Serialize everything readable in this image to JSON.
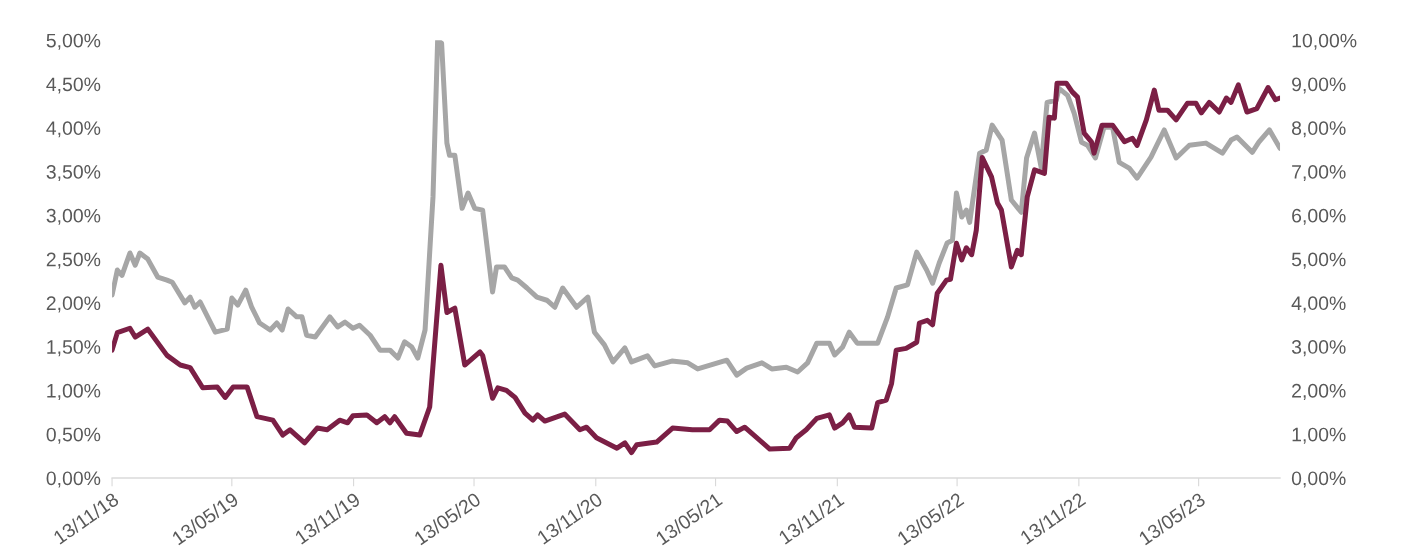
{
  "chart_data": {
    "type": "line",
    "xlim": [
      "2018-11-13",
      "2023-09-13"
    ],
    "xticks": [
      {
        "value": "2018-11-13",
        "label": "13/11/18"
      },
      {
        "value": "2019-05-13",
        "label": "13/05/19"
      },
      {
        "value": "2019-11-13",
        "label": "13/11/19"
      },
      {
        "value": "2020-05-13",
        "label": "13/05/20"
      },
      {
        "value": "2020-11-13",
        "label": "13/11/20"
      },
      {
        "value": "2021-05-13",
        "label": "13/05/21"
      },
      {
        "value": "2021-11-13",
        "label": "13/11/21"
      },
      {
        "value": "2022-05-13",
        "label": "13/05/22"
      },
      {
        "value": "2022-11-13",
        "label": "13/11/22"
      },
      {
        "value": "2023-05-13",
        "label": "13/05/23"
      }
    ],
    "ylim": [
      0,
      5
    ],
    "yticks": [
      {
        "value": 0,
        "label": "0,00%"
      },
      {
        "value": 0.5,
        "label": "0,50%"
      },
      {
        "value": 1,
        "label": "1,00%"
      },
      {
        "value": 1.5,
        "label": "1,50%"
      },
      {
        "value": 2,
        "label": "2,00%"
      },
      {
        "value": 2.5,
        "label": "2,50%"
      },
      {
        "value": 3,
        "label": "3,00%"
      },
      {
        "value": 3.5,
        "label": "3,50%"
      },
      {
        "value": 4,
        "label": "4,00%"
      },
      {
        "value": 4.5,
        "label": "4,50%"
      },
      {
        "value": 5,
        "label": "5,00%"
      }
    ],
    "y2lim": [
      0,
      10
    ],
    "y2ticks": [
      {
        "value": 0,
        "label": "0,00%"
      },
      {
        "value": 1,
        "label": "1,00%"
      },
      {
        "value": 2,
        "label": "2,00%"
      },
      {
        "value": 3,
        "label": "3,00%"
      },
      {
        "value": 4,
        "label": "4,00%"
      },
      {
        "value": 5,
        "label": "5,00%"
      },
      {
        "value": 6,
        "label": "6,00%"
      },
      {
        "value": 7,
        "label": "7,00%"
      },
      {
        "value": 8,
        "label": "8,00%"
      },
      {
        "value": 9,
        "label": "9,00%"
      },
      {
        "value": 10,
        "label": "10,00%"
      }
    ],
    "grid": false,
    "marker": "none",
    "line_style": "solid",
    "series": [
      {
        "color": "#a6a6a6",
        "axis": "y2",
        "x": [
          "2018-11-13",
          "2018-11-21",
          "2018-11-28",
          "2018-12-10",
          "2018-12-18",
          "2018-12-25",
          "2019-01-06",
          "2019-01-21",
          "2019-02-04",
          "2019-02-12",
          "2019-03-03",
          "2019-03-11",
          "2019-03-18",
          "2019-03-26",
          "2019-04-18",
          "2019-05-06",
          "2019-05-13",
          "2019-05-22",
          "2019-06-03",
          "2019-06-12",
          "2019-06-24",
          "2019-07-10",
          "2019-07-20",
          "2019-07-28",
          "2019-08-06",
          "2019-08-19",
          "2019-08-27",
          "2019-09-03",
          "2019-09-16",
          "2019-10-08",
          "2019-10-20",
          "2019-10-31",
          "2019-11-12",
          "2019-11-22",
          "2019-12-08",
          "2019-12-23",
          "2020-01-07",
          "2020-01-19",
          "2020-01-29",
          "2020-02-09",
          "2020-02-18",
          "2020-02-29",
          "2020-03-12",
          "2020-03-19",
          "2020-03-25",
          "2020-04-02",
          "2020-04-06",
          "2020-04-14",
          "2020-04-25",
          "2020-05-04",
          "2020-05-14",
          "2020-05-26",
          "2020-06-10",
          "2020-06-16",
          "2020-06-28",
          "2020-07-09",
          "2020-07-18",
          "2020-08-01",
          "2020-08-16",
          "2020-08-31",
          "2020-09-12",
          "2020-09-24",
          "2020-10-15",
          "2020-11-01",
          "2020-11-11",
          "2020-11-26",
          "2020-12-09",
          "2020-12-27",
          "2021-01-06",
          "2021-01-30",
          "2021-02-10",
          "2021-03-08",
          "2021-04-01",
          "2021-04-16",
          "2021-05-30",
          "2021-06-14",
          "2021-06-29",
          "2021-07-22",
          "2021-08-06",
          "2021-08-28",
          "2021-09-14",
          "2021-09-29",
          "2021-10-13",
          "2021-11-01",
          "2021-11-09",
          "2021-11-21",
          "2021-12-01",
          "2021-12-13",
          "2022-01-13",
          "2022-01-28",
          "2022-02-10",
          "2022-02-27",
          "2022-03-13",
          "2022-03-28",
          "2022-04-06",
          "2022-04-16",
          "2022-04-28",
          "2022-05-06",
          "2022-05-12",
          "2022-05-20",
          "2022-05-27",
          "2022-06-01",
          "2022-06-16",
          "2022-06-26",
          "2022-07-05",
          "2022-07-20",
          "2022-08-03",
          "2022-08-18",
          "2022-08-26",
          "2022-09-07",
          "2022-09-17",
          "2022-09-26",
          "2022-10-10",
          "2022-10-14",
          "2022-10-27",
          "2022-11-06",
          "2022-11-17",
          "2022-11-26",
          "2022-12-08",
          "2022-12-21",
          "2023-01-03",
          "2023-01-13",
          "2023-01-28",
          "2023-02-09",
          "2023-03-02",
          "2023-03-22",
          "2023-04-09",
          "2023-04-29",
          "2023-05-24",
          "2023-06-18",
          "2023-07-01",
          "2023-07-10",
          "2023-08-02",
          "2023-08-12",
          "2023-08-28",
          "2023-09-13"
        ],
        "values": [
          4.18,
          4.75,
          4.63,
          5.14,
          4.86,
          5.14,
          5.0,
          4.59,
          4.52,
          4.47,
          4.0,
          4.13,
          3.9,
          4.02,
          3.33,
          3.4,
          4.11,
          3.95,
          4.29,
          3.9,
          3.54,
          3.38,
          3.54,
          3.38,
          3.86,
          3.68,
          3.68,
          3.26,
          3.22,
          3.68,
          3.45,
          3.56,
          3.42,
          3.49,
          3.26,
          2.92,
          2.92,
          2.74,
          3.11,
          2.99,
          2.74,
          3.38,
          6.42,
          10.0,
          9.93,
          7.65,
          7.37,
          7.37,
          6.16,
          6.51,
          6.16,
          6.12,
          4.25,
          4.82,
          4.82,
          4.57,
          4.52,
          4.34,
          4.13,
          4.06,
          3.9,
          4.34,
          3.9,
          4.13,
          3.33,
          3.04,
          2.65,
          2.97,
          2.65,
          2.79,
          2.56,
          2.67,
          2.63,
          2.49,
          2.69,
          2.35,
          2.51,
          2.63,
          2.49,
          2.53,
          2.42,
          2.63,
          3.08,
          3.08,
          2.81,
          2.99,
          3.33,
          3.08,
          3.08,
          3.68,
          4.34,
          4.41,
          5.16,
          4.75,
          4.45,
          4.91,
          5.37,
          5.43,
          6.51,
          5.96,
          6.12,
          5.84,
          7.42,
          7.49,
          8.06,
          7.72,
          6.35,
          6.07,
          7.31,
          7.88,
          7.1,
          8.58,
          8.63,
          8.9,
          8.74,
          8.33,
          7.67,
          7.6,
          7.31,
          8.01,
          8.01,
          7.21,
          7.08,
          6.85,
          7.33,
          7.95,
          7.31,
          7.6,
          7.65,
          7.42,
          7.72,
          7.79,
          7.44,
          7.67,
          7.95,
          7.53
        ]
      },
      {
        "color": "#7b1f45",
        "axis": "y",
        "x": [
          "2018-11-13",
          "2018-11-21",
          "2018-12-10",
          "2018-12-18",
          "2019-01-06",
          "2019-02-04",
          "2019-02-24",
          "2019-03-11",
          "2019-03-30",
          "2019-04-21",
          "2019-05-03",
          "2019-05-15",
          "2019-06-05",
          "2019-06-20",
          "2019-07-14",
          "2019-07-29",
          "2019-08-09",
          "2019-08-31",
          "2019-09-19",
          "2019-10-04",
          "2019-10-23",
          "2019-11-04",
          "2019-11-12",
          "2019-12-03",
          "2019-12-18",
          "2019-12-30",
          "2020-01-07",
          "2020-01-14",
          "2020-02-01",
          "2020-02-21",
          "2020-03-07",
          "2020-03-24",
          "2020-04-02",
          "2020-04-14",
          "2020-04-29",
          "2020-05-22",
          "2020-05-26",
          "2020-06-10",
          "2020-06-18",
          "2020-07-01",
          "2020-07-14",
          "2020-07-29",
          "2020-08-10",
          "2020-08-17",
          "2020-08-28",
          "2020-09-27",
          "2020-10-20",
          "2020-10-30",
          "2020-11-14",
          "2020-12-15",
          "2020-12-27",
          "2021-01-06",
          "2021-01-14",
          "2021-02-13",
          "2021-03-09",
          "2021-04-08",
          "2021-05-04",
          "2021-05-19",
          "2021-05-31",
          "2021-06-14",
          "2021-06-26",
          "2021-08-03",
          "2021-09-02",
          "2021-09-12",
          "2021-09-27",
          "2021-10-13",
          "2021-11-01",
          "2021-11-09",
          "2021-11-21",
          "2021-12-01",
          "2021-12-09",
          "2022-01-04",
          "2022-01-13",
          "2022-01-26",
          "2022-02-03",
          "2022-02-10",
          "2022-02-25",
          "2022-03-13",
          "2022-03-17",
          "2022-03-29",
          "2022-04-06",
          "2022-04-13",
          "2022-04-27",
          "2022-05-03",
          "2022-05-12",
          "2022-05-20",
          "2022-05-27",
          "2022-06-04",
          "2022-06-11",
          "2022-06-20",
          "2022-07-04",
          "2022-07-13",
          "2022-07-19",
          "2022-08-03",
          "2022-08-12",
          "2022-08-18",
          "2022-08-27",
          "2022-09-07",
          "2022-09-22",
          "2022-09-29",
          "2022-10-07",
          "2022-10-11",
          "2022-10-25",
          "2022-11-03",
          "2022-11-11",
          "2022-11-21",
          "2022-12-02",
          "2022-12-06",
          "2022-12-18",
          "2023-01-03",
          "2023-01-21",
          "2023-02-02",
          "2023-02-09",
          "2023-02-23",
          "2023-03-07",
          "2023-03-14",
          "2023-03-27",
          "2023-04-09",
          "2023-04-26",
          "2023-05-09",
          "2023-05-17",
          "2023-05-29",
          "2023-06-13",
          "2023-06-24",
          "2023-07-01",
          "2023-07-12",
          "2023-07-25",
          "2023-08-09",
          "2023-08-26",
          "2023-09-06",
          "2023-09-13"
        ],
        "values": [
          1.46,
          1.66,
          1.71,
          1.61,
          1.7,
          1.4,
          1.29,
          1.26,
          1.03,
          1.04,
          0.92,
          1.04,
          1.04,
          0.7,
          0.66,
          0.49,
          0.55,
          0.4,
          0.57,
          0.55,
          0.66,
          0.63,
          0.71,
          0.72,
          0.63,
          0.7,
          0.63,
          0.7,
          0.51,
          0.49,
          0.81,
          2.43,
          1.89,
          1.94,
          1.29,
          1.44,
          1.4,
          0.91,
          1.03,
          1.0,
          0.92,
          0.74,
          0.66,
          0.72,
          0.65,
          0.73,
          0.55,
          0.58,
          0.46,
          0.34,
          0.4,
          0.29,
          0.38,
          0.41,
          0.57,
          0.55,
          0.55,
          0.66,
          0.65,
          0.53,
          0.58,
          0.33,
          0.34,
          0.46,
          0.55,
          0.68,
          0.72,
          0.57,
          0.63,
          0.72,
          0.58,
          0.57,
          0.86,
          0.89,
          1.08,
          1.46,
          1.48,
          1.55,
          1.77,
          1.8,
          1.75,
          2.11,
          2.26,
          2.27,
          2.68,
          2.49,
          2.63,
          2.55,
          2.83,
          3.66,
          3.44,
          3.14,
          3.06,
          2.41,
          2.6,
          2.55,
          3.21,
          3.52,
          3.48,
          4.12,
          4.11,
          4.51,
          4.51,
          4.41,
          4.35,
          3.94,
          3.84,
          3.71,
          4.03,
          4.03,
          3.84,
          3.88,
          3.8,
          4.09,
          4.43,
          4.2,
          4.2,
          4.09,
          4.28,
          4.28,
          4.17,
          4.29,
          4.18,
          4.34,
          4.29,
          4.49,
          4.18,
          4.22,
          4.46,
          4.32,
          4.34
        ]
      }
    ]
  }
}
